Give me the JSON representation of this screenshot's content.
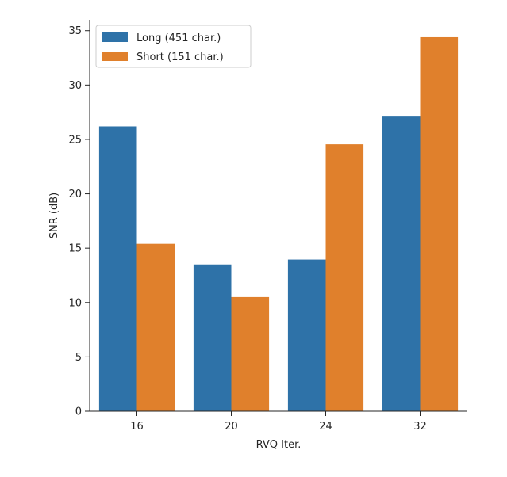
{
  "chart_data": {
    "type": "bar",
    "title": "",
    "xlabel": "RVQ Iter.",
    "ylabel": "SNR (dB)",
    "categories": [
      "16",
      "20",
      "24",
      "32"
    ],
    "series": [
      {
        "name": "Long (451 char.)",
        "color": "#2e72a8",
        "values": [
          26.2,
          13.5,
          13.95,
          27.1
        ]
      },
      {
        "name": "Short (151 char.)",
        "color": "#e0802c",
        "values": [
          15.4,
          10.5,
          24.55,
          34.4
        ]
      }
    ],
    "ylim": [
      0,
      36
    ],
    "yticks": [
      0,
      5,
      10,
      15,
      20,
      25,
      30,
      35
    ],
    "grid": false,
    "legend_position": "top-left"
  }
}
